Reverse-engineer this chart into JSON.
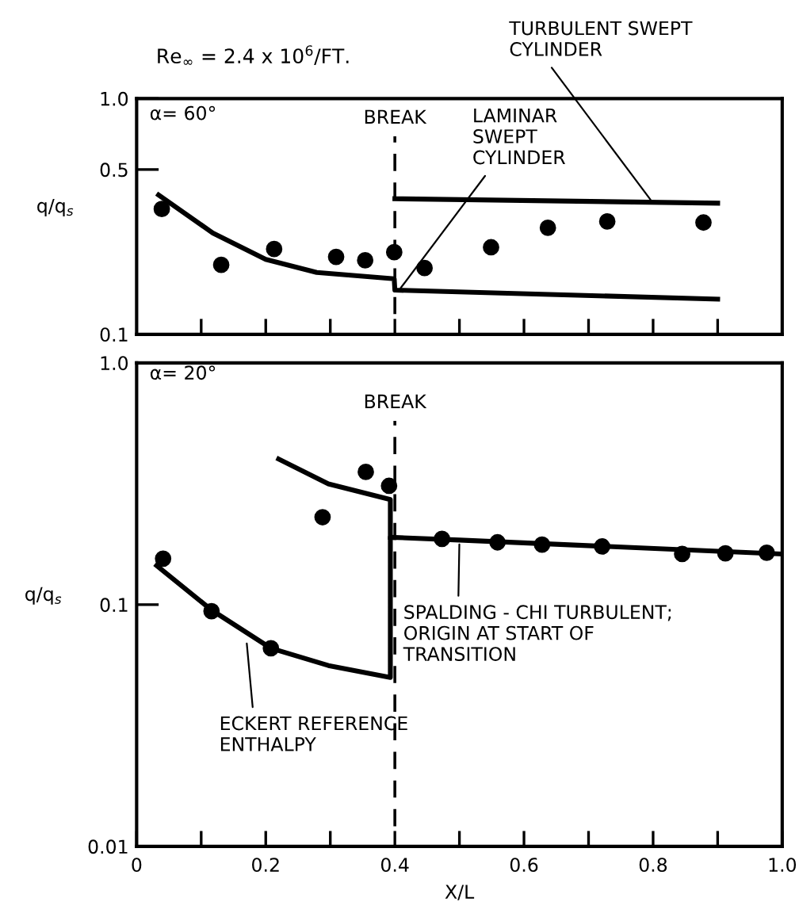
{
  "chart_data": [
    {
      "type": "line",
      "title": "Re$_{∞}$ = 2.4 x 10$^{6}$/FT.",
      "ylabel": "q/q$_{s}$",
      "log": "y",
      "xlim": [
        0,
        1.0
      ],
      "ylim": [
        0.1,
        1.0
      ],
      "xticks": [
        {
          "value": 0.1,
          "label": null
        },
        {
          "value": 0.2,
          "label": null
        },
        {
          "value": 0.3,
          "label": null
        },
        {
          "value": 0.4,
          "label": null
        },
        {
          "value": 0.5,
          "label": null
        },
        {
          "value": 0.6,
          "label": null
        },
        {
          "value": 0.7,
          "label": null
        },
        {
          "value": 0.8,
          "label": null
        },
        {
          "value": 0.9,
          "label": null
        }
      ],
      "yticks": [
        0.1,
        0.5,
        {
          "value": 1.0,
          "label": "1.0"
        }
      ],
      "tick_labels": "y",
      "grid": false,
      "legend": false,
      "series": [
        {
          "type": "scatter",
          "color": "#000000",
          "marker": "circle",
          "x": [
            0.039,
            0.131,
            0.213,
            0.309,
            0.354,
            0.399,
            0.446,
            0.549,
            0.637,
            0.729,
            0.878
          ],
          "values": [
            0.34,
            0.197,
            0.23,
            0.213,
            0.206,
            0.223,
            0.191,
            0.234,
            0.283,
            0.301,
            0.298
          ]
        },
        {
          "color": "#000000",
          "x": [
            0.034,
            0.118,
            0.2,
            0.279,
            0.399,
            0.4,
            0.9
          ],
          "values": [
            0.39,
            0.269,
            0.208,
            0.183,
            0.172,
            0.154,
            0.141
          ]
        },
        {
          "color": "#000000",
          "x": [
            0.4,
            0.9
          ],
          "values": [
            0.376,
            0.36
          ]
        }
      ],
      "ref_lines": [
        {
          "axis": "x",
          "value": 0.4,
          "label": "BREAK",
          "line_style": "dashed",
          "color": "#000000"
        }
      ],
      "annotations": [
        "α= 60°",
        {
          "text": "TURBULENT SWEPT\nCYLINDER",
          "x": 0.8,
          "y": 0.36
        },
        {
          "text": "LAMINAR\nSWEPT\nCYLINDER",
          "x": 0.405,
          "y": 0.152
        }
      ]
    },
    {
      "type": "line",
      "xlabel": "X/L",
      "ylabel": "q/q$_{s}$",
      "log": "y",
      "xlim": [
        0,
        1.0
      ],
      "ylim": [
        0.01,
        1.0
      ],
      "xticks": [
        0,
        {
          "value": 0.1,
          "label": null
        },
        0.2,
        {
          "value": 0.3,
          "label": null
        },
        0.4,
        {
          "value": 0.5,
          "label": null
        },
        0.6,
        {
          "value": 0.7,
          "label": null
        },
        0.8,
        {
          "value": 0.9,
          "label": null
        },
        {
          "value": 1.0,
          "label": "1.0"
        }
      ],
      "yticks": [
        0.01,
        0.1,
        {
          "value": 1.0,
          "label": "1.0"
        }
      ],
      "grid": false,
      "legend": false,
      "series": [
        {
          "type": "scatter",
          "color": "#000000",
          "marker": "circle",
          "x": [
            0.041,
            0.116,
            0.208,
            0.288,
            0.355,
            0.391,
            0.473,
            0.559,
            0.628,
            0.721,
            0.845,
            0.912,
            0.976
          ],
          "values": [
            0.155,
            0.094,
            0.066,
            0.23,
            0.354,
            0.31,
            0.187,
            0.181,
            0.177,
            0.174,
            0.162,
            0.163,
            0.164
          ]
        },
        {
          "color": "#000000",
          "x": [
            0.031,
            0.116,
            0.208,
            0.297,
            0.393,
            0.393,
            0.5,
            1.0
          ],
          "values": [
            0.145,
            0.095,
            0.066,
            0.056,
            0.05,
            0.19,
            0.185,
            0.162
          ]
        },
        {
          "color": "#000000",
          "x": [
            0.22,
            0.297,
            0.393,
            0.393
          ],
          "values": [
            0.4,
            0.316,
            0.272,
            0.19
          ]
        }
      ],
      "ref_lines": [
        {
          "axis": "x",
          "value": 0.4,
          "label": "BREAK",
          "line_style": "dashed",
          "color": "#000000"
        }
      ],
      "annotations": [
        "α= 20°",
        {
          "text": "SPALDING - CHI TURBULENT;\nORIGIN AT START OF\nTRANSITION",
          "x": 0.5,
          "y": 0.185
        },
        {
          "text": "ECKERT REFERENCE\nENTHALPY",
          "x": 0.17,
          "y": 0.072
        }
      ]
    }
  ]
}
